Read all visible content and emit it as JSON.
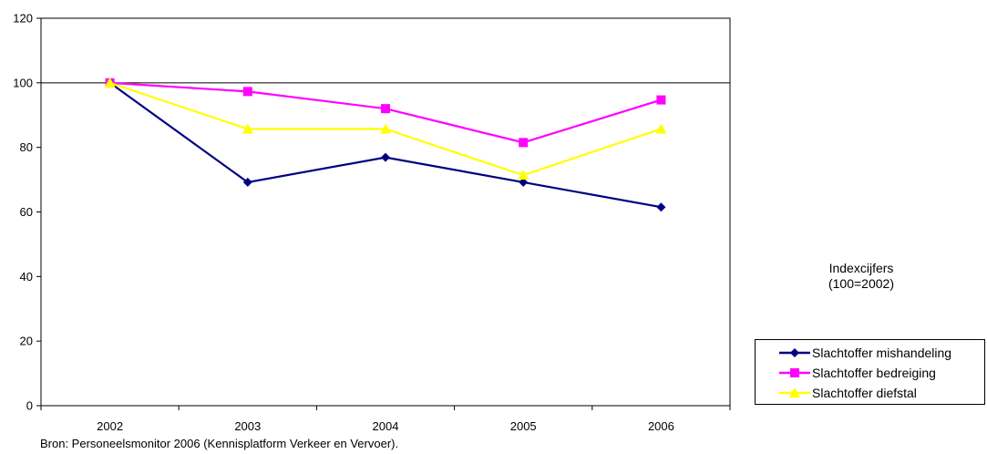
{
  "chart_data": {
    "type": "line",
    "categories": [
      "2002",
      "2003",
      "2004",
      "2005",
      "2006"
    ],
    "ylim": [
      0,
      120
    ],
    "yticks": [
      0,
      20,
      40,
      60,
      80,
      100,
      120
    ],
    "reference_line": 100,
    "series": [
      {
        "name": "Slachtoffer mishandeling",
        "values": [
          100,
          69.2,
          76.9,
          69.2,
          61.5
        ],
        "color": "#000080",
        "marker": "diamond"
      },
      {
        "name": "Slachtoffer bedreiging",
        "values": [
          100,
          97.3,
          92.0,
          81.5,
          94.7
        ],
        "color": "#ff00ff",
        "marker": "square"
      },
      {
        "name": "Slachtoffer diefstal",
        "values": [
          100,
          85.7,
          85.7,
          71.4,
          85.7
        ],
        "color": "#ffff00",
        "marker": "triangle"
      }
    ],
    "annotation": [
      "Indexcijfers",
      "(100=2002)"
    ],
    "legend_position": "bottom-right",
    "grid": false
  },
  "source_note": "Bron: Personeelsmonitor 2006 (Kennisplatform Verkeer en Vervoer)."
}
